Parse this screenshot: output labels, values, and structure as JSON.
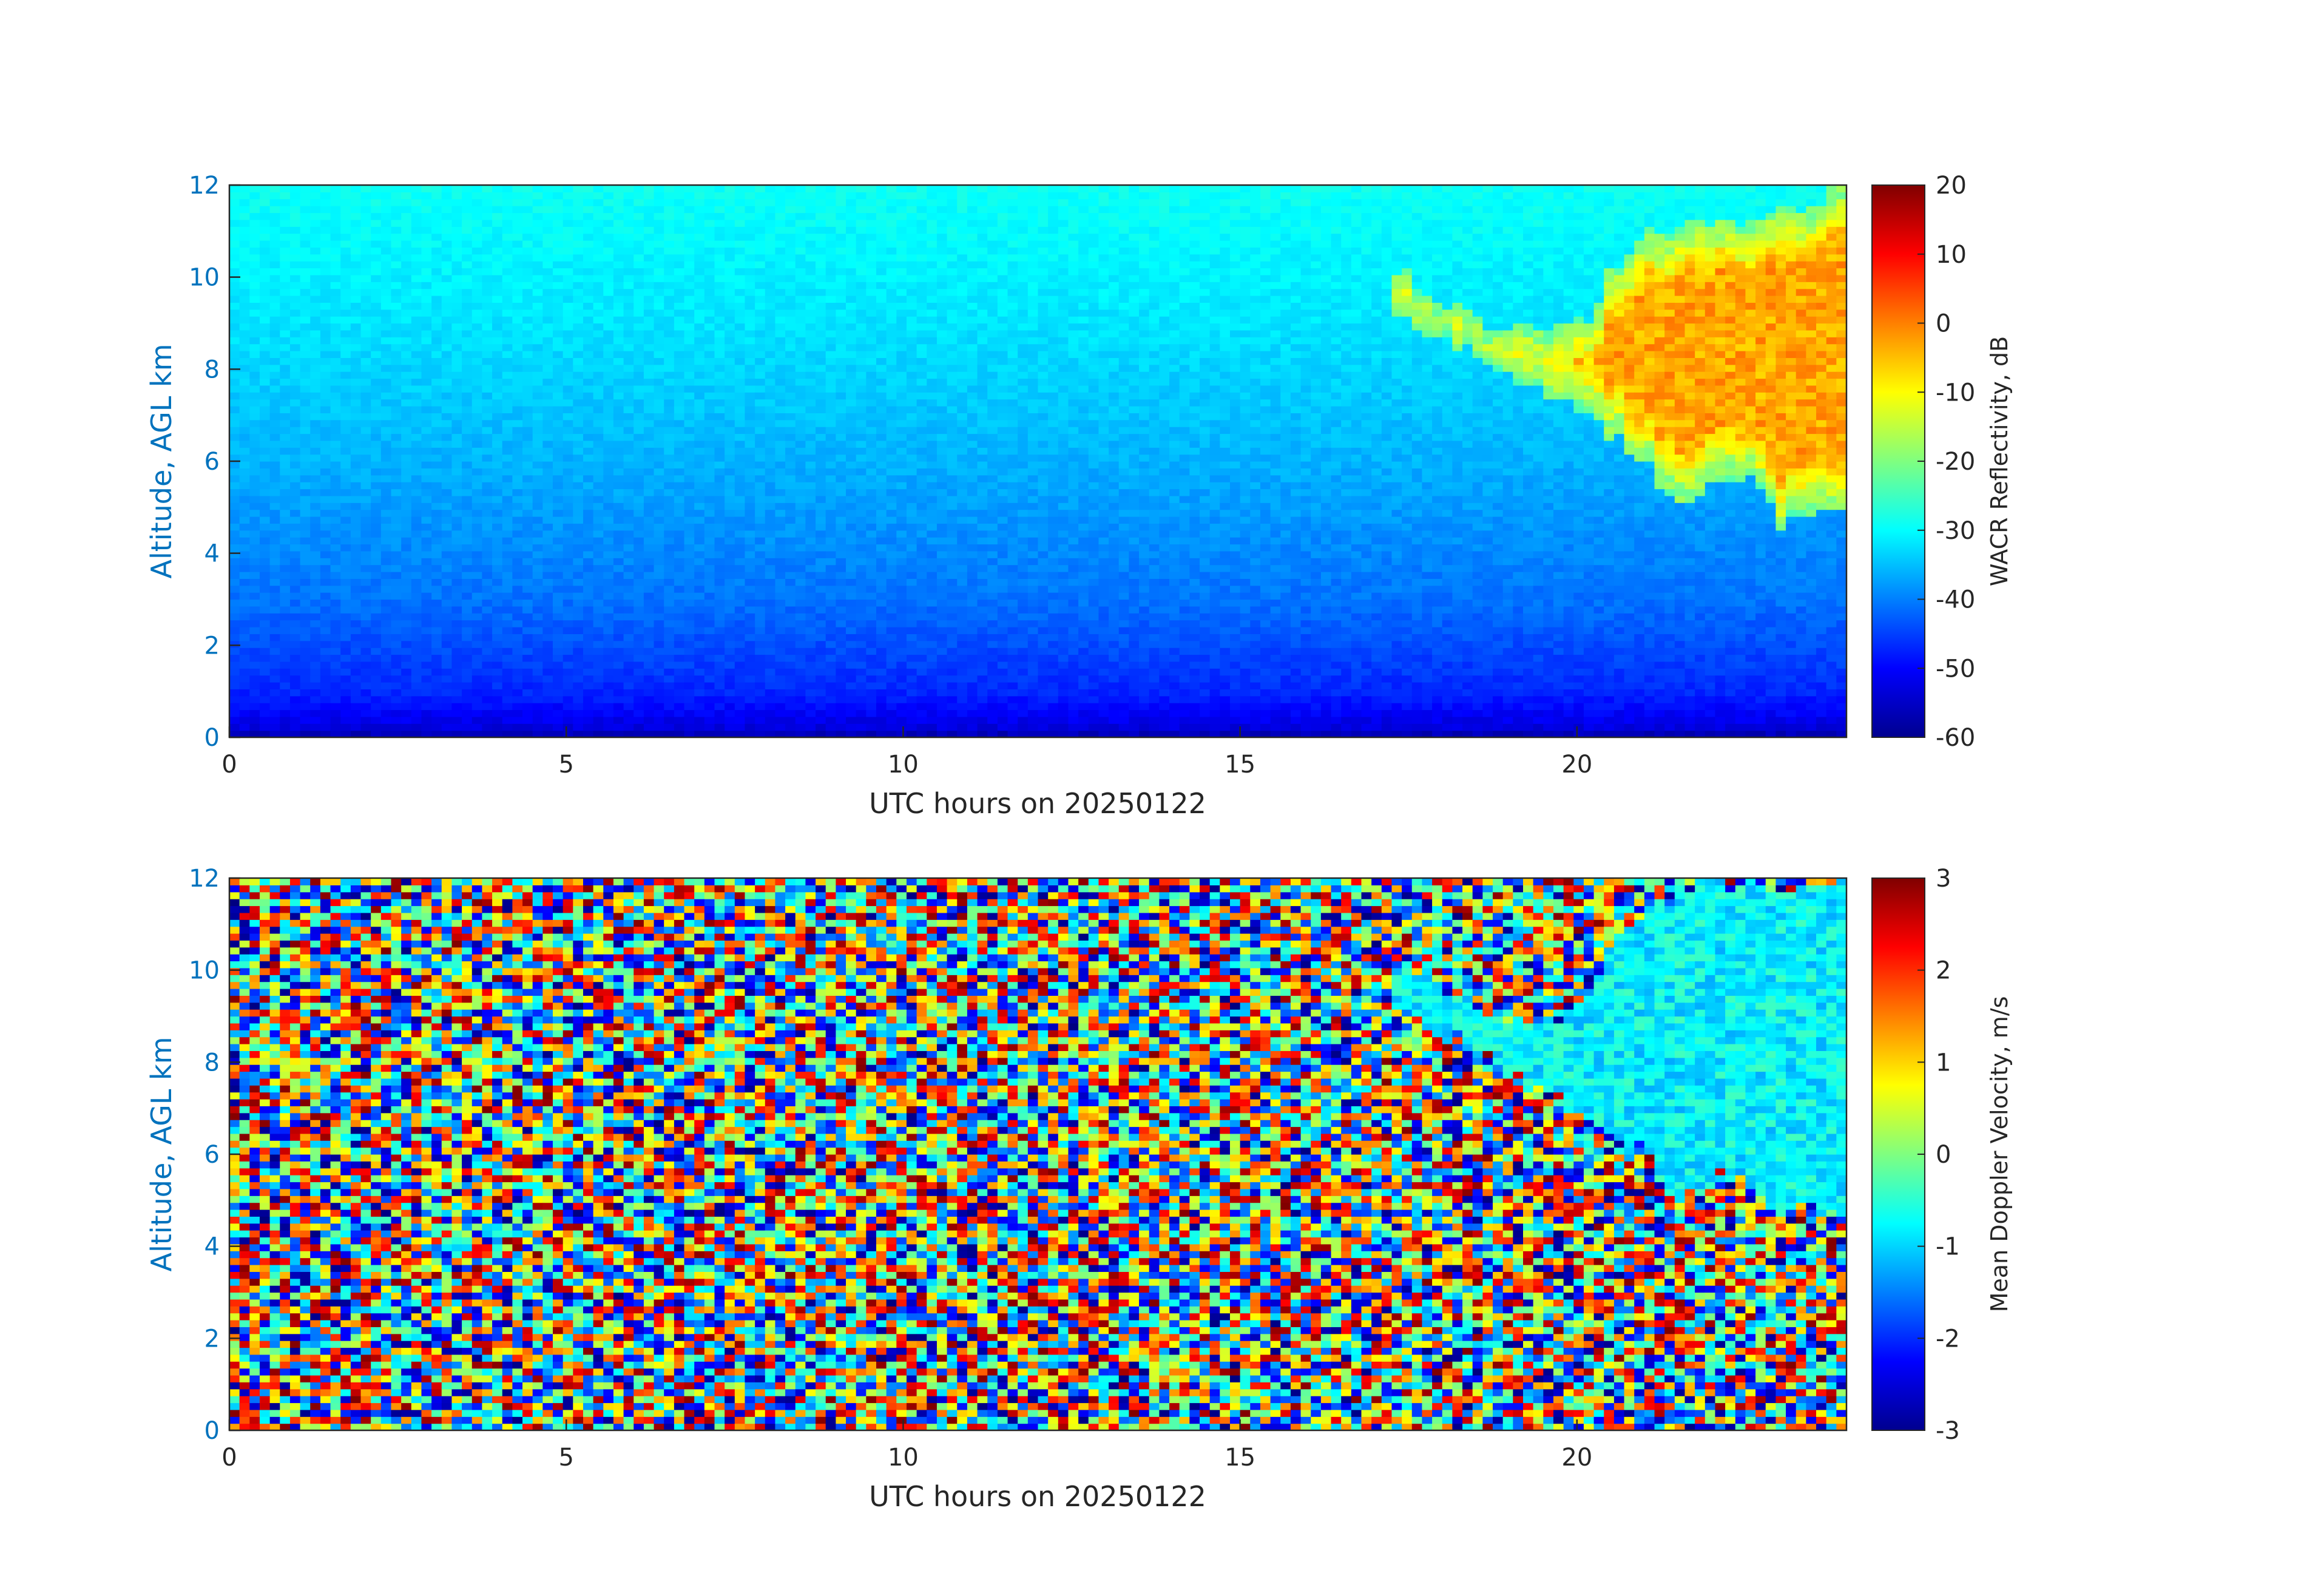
{
  "chart_data": [
    {
      "type": "heatmap",
      "xlabel": "UTC hours on 20250122",
      "ylabel": "Altitude, AGL km",
      "xlim": [
        0,
        24
      ],
      "ylim": [
        0,
        12
      ],
      "x_ticks": [
        "0",
        "5",
        "10",
        "15",
        "20"
      ],
      "y_ticks": [
        "0",
        "2",
        "4",
        "6",
        "8",
        "10",
        "12"
      ],
      "colorbar": {
        "label": "WACR Reflectivity, dB",
        "range": [
          -60,
          20
        ],
        "ticks": [
          "20",
          "10",
          "0",
          "-10",
          "-20",
          "-30",
          "-40",
          "-50",
          "-60"
        ],
        "colormap": "jet"
      },
      "background_gradient": [
        {
          "altitude_km": 0.0,
          "value": -58
        },
        {
          "altitude_km": 0.15,
          "value": -53
        },
        {
          "altitude_km": 1.0,
          "value": -47
        },
        {
          "altitude_km": 3.0,
          "value": -41
        },
        {
          "altitude_km": 6.0,
          "value": -36
        },
        {
          "altitude_km": 9.0,
          "value": -32
        },
        {
          "altitude_km": 12.0,
          "value": -29
        }
      ],
      "cloud": {
        "hours": [
          17.3,
          18.0,
          18.8,
          19.5,
          20.2,
          20.5,
          21.0,
          21.5,
          22.0,
          22.5,
          23.0,
          23.5,
          24.0
        ],
        "base_km": [
          9.2,
          8.7,
          8.0,
          7.5,
          6.9,
          6.6,
          6.0,
          5.0,
          5.5,
          5.7,
          4.6,
          5.0,
          4.7
        ],
        "top_km": [
          10.2,
          9.5,
          8.9,
          8.8,
          9.1,
          10.2,
          10.9,
          11.1,
          11.2,
          11.0,
          11.4,
          11.6,
          11.9
        ],
        "core_value_db": -3,
        "edge_value_db": -22
      }
    },
    {
      "type": "heatmap",
      "xlabel": "UTC hours on 20250122",
      "ylabel": "Altitude, AGL km",
      "xlim": [
        0,
        24
      ],
      "ylim": [
        0,
        12
      ],
      "x_ticks": [
        "0",
        "5",
        "10",
        "15",
        "20"
      ],
      "y_ticks": [
        "0",
        "2",
        "4",
        "6",
        "8",
        "10",
        "12"
      ],
      "colorbar": {
        "label": "Mean Doppler Velocity, m/s",
        "range": [
          -3,
          3
        ],
        "ticks": [
          "3",
          "2",
          "1",
          "0",
          "-1",
          "-2",
          "-3"
        ],
        "colormap": "jet"
      },
      "background": "noise",
      "cloud": {
        "hours": [
          17.3,
          18.0,
          18.8,
          19.5,
          20.2,
          20.5,
          21.0,
          21.5,
          22.0,
          22.5,
          23.0,
          23.5,
          24.0
        ],
        "base_km": [
          9.2,
          8.7,
          8.0,
          7.3,
          6.8,
          6.5,
          6.0,
          5.0,
          5.4,
          5.6,
          4.5,
          5.0,
          4.8
        ],
        "top_km": [
          10.2,
          9.6,
          9.0,
          8.8,
          9.5,
          10.5,
          11.2,
          11.7,
          11.9,
          11.8,
          11.8,
          11.9,
          11.9
        ],
        "mean_velocity_ms": -0.8
      }
    }
  ]
}
